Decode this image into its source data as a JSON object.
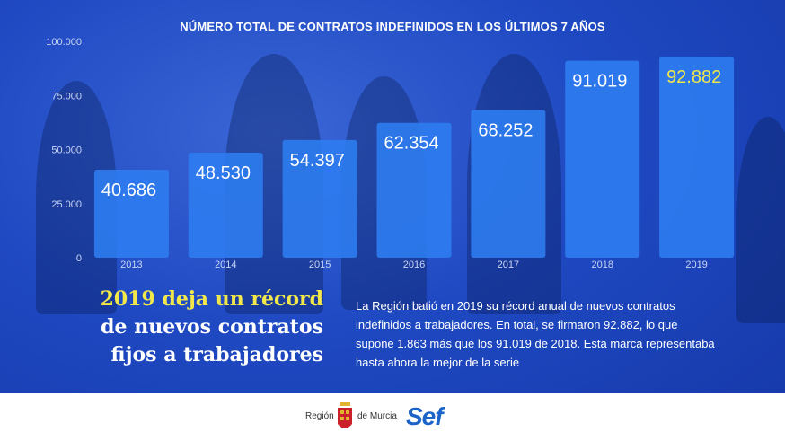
{
  "chart_data": {
    "type": "bar",
    "title": "NÚMERO TOTAL DE CONTRATOS INDEFINIDOS EN LOS ÚLTIMOS 7 AÑOS",
    "categories": [
      "2013",
      "2014",
      "2015",
      "2016",
      "2017",
      "2018",
      "2019"
    ],
    "values": [
      40686,
      48530,
      54397,
      62354,
      68252,
      91019,
      92882
    ],
    "value_labels": [
      "40.686",
      "48.530",
      "54.397",
      "62.354",
      "68.252",
      "91.019",
      "92.882"
    ],
    "ylim": [
      0,
      100000
    ],
    "yticks": [
      0,
      25000,
      50000,
      75000,
      100000
    ],
    "ytick_labels": [
      "0",
      "25.000",
      "50.000",
      "75.000",
      "100.000"
    ],
    "grid": false,
    "bar_color": "#2e7cf0",
    "label_color": "#ffffff",
    "highlight_label_color": "#f2e84b",
    "highlight_index": 6
  },
  "headline": {
    "line1": "2019 deja un récord",
    "line2": "de nuevos contratos",
    "line3": "fijos a trabajadores"
  },
  "summary": "La Región batió en 2019 su récord anual de nuevos contratos indefinidos a trabajadores. En total, se firmaron 92.882, lo que supone 1.863 más que los 91.019 de 2018. Esta marca representaba hasta ahora la mejor de la serie",
  "footer": {
    "region_left": "Región",
    "region_right": "de Murcia",
    "sef_logo": "Sef"
  },
  "colors": {
    "accent_yellow": "#f2e84b",
    "background_blue": "#1f49c2",
    "sef_blue": "#1b63c8"
  }
}
